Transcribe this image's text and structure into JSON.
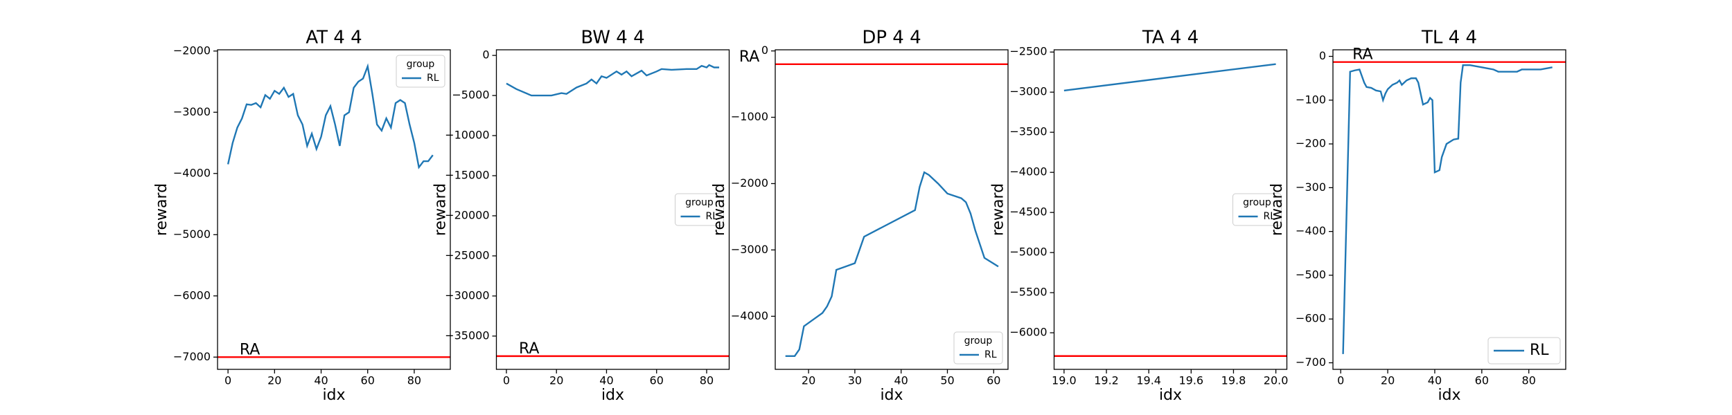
{
  "chart_data": [
    {
      "type": "line",
      "title": "AT 4 4",
      "x_label": "idx",
      "y_label": "reward",
      "x": [
        0,
        2,
        4,
        6,
        8,
        10,
        12,
        14,
        16,
        18,
        20,
        22,
        24,
        26,
        28,
        30,
        32,
        34,
        36,
        38,
        40,
        42,
        44,
        46,
        48,
        50,
        52,
        54,
        56,
        58,
        60,
        62,
        64,
        66,
        68,
        70,
        72,
        74,
        76,
        78,
        80,
        82,
        84,
        86,
        88
      ],
      "series": [
        {
          "name": "RL",
          "color": "#1f77b4",
          "values": [
            -3850,
            -3500,
            -3250,
            -3100,
            -2870,
            -2880,
            -2850,
            -2920,
            -2720,
            -2780,
            -2650,
            -2700,
            -2600,
            -2750,
            -2700,
            -3050,
            -3200,
            -3550,
            -3350,
            -3600,
            -3400,
            -3050,
            -2900,
            -3200,
            -3550,
            -3050,
            -3000,
            -2600,
            -2500,
            -2450,
            -2250,
            -2700,
            -3200,
            -3300,
            -3100,
            -3250,
            -2850,
            -2800,
            -2850,
            -3200,
            -3500,
            -3900,
            -3800,
            -3800,
            -3700
          ]
        }
      ],
      "reference_line": {
        "label": "RA",
        "value": -7000,
        "color": "#ff0000",
        "label_x": 5
      },
      "xlim": [
        -4.5,
        95.5
      ],
      "xticks": [
        0,
        20,
        40,
        60,
        80
      ],
      "ylim": [
        -7200,
        -1980
      ],
      "yticks": [
        {
          "value": -7000,
          "label": "−7000"
        },
        {
          "value": -6000,
          "label": "−6000"
        },
        {
          "value": -5000,
          "label": "−5000"
        },
        {
          "value": -4000,
          "label": "−4000"
        },
        {
          "value": -3000,
          "label": "−3000"
        },
        {
          "value": -2000,
          "label": "−2000"
        }
      ],
      "legend_title": "group",
      "legend": "upper right"
    },
    {
      "type": "line",
      "title": "BW 4 4",
      "x_label": "idx",
      "y_label": "reward",
      "x": [
        0,
        4,
        10,
        18,
        22,
        24,
        28,
        32,
        34,
        36,
        38,
        40,
        44,
        46,
        48,
        50,
        54,
        56,
        60,
        62,
        66,
        72,
        76,
        78,
        80,
        81,
        83,
        85
      ],
      "series": [
        {
          "name": "RL",
          "color": "#1f77b4",
          "values": [
            -3500,
            -4200,
            -5000,
            -5000,
            -4700,
            -4800,
            -4000,
            -3500,
            -3000,
            -3500,
            -2600,
            -2800,
            -2000,
            -2400,
            -2000,
            -2600,
            -1900,
            -2500,
            -2000,
            -1700,
            -1800,
            -1700,
            -1700,
            -1300,
            -1500,
            -1200,
            -1500,
            -1500
          ]
        }
      ],
      "reference_line": {
        "label": "RA",
        "value": -37500,
        "color": "#ff0000",
        "label_x": 5
      },
      "xlim": [
        -4,
        89
      ],
      "xticks": [
        0,
        20,
        40,
        60,
        80
      ],
      "ylim": [
        -39150,
        700
      ],
      "yticks": [
        {
          "value": -35000,
          "label": "−35000"
        },
        {
          "value": -30000,
          "label": "−30000"
        },
        {
          "value": -25000,
          "label": "−25000"
        },
        {
          "value": -20000,
          "label": "−20000"
        },
        {
          "value": -15000,
          "label": "−15000"
        },
        {
          "value": -10000,
          "label": "−10000"
        },
        {
          "value": -5000,
          "label": "−5000"
        },
        0
      ],
      "legend_title": "group",
      "legend": "center right"
    },
    {
      "type": "line",
      "title": "DP 4 4",
      "x_label": "idx",
      "y_label": "reward",
      "x": [
        15,
        17,
        18,
        19,
        21,
        23,
        24,
        25,
        26,
        28,
        30,
        32,
        43,
        44,
        45,
        46,
        48,
        50,
        53,
        54,
        55,
        56,
        58,
        61
      ],
      "series": [
        {
          "name": "RL",
          "color": "#1f77b4",
          "values": [
            -4600,
            -4600,
            -4500,
            -4150,
            -4050,
            -3950,
            -3850,
            -3700,
            -3300,
            -3250,
            -3200,
            -2800,
            -2400,
            -2050,
            -1830,
            -1870,
            -2000,
            -2150,
            -2220,
            -2280,
            -2450,
            -2700,
            -3120,
            -3250
          ]
        }
      ],
      "reference_line": {
        "label": "RA",
        "value": -200,
        "color": "#ff0000",
        "label_x": 5
      },
      "xlim": [
        12.8,
        63.1
      ],
      "xticks": [
        20,
        30,
        40,
        50,
        60
      ],
      "ylim": [
        -4800,
        17
      ],
      "yticks": [
        {
          "value": -4000,
          "label": "−4000"
        },
        {
          "value": -3000,
          "label": "−3000"
        },
        {
          "value": -2000,
          "label": "−2000"
        },
        {
          "value": -1000,
          "label": "−1000"
        },
        0
      ],
      "legend_title": "group",
      "legend": "lower right"
    },
    {
      "type": "line",
      "title": "TA 4 4",
      "x_label": "idx",
      "y_label": "reward",
      "x": [
        19,
        20
      ],
      "series": [
        {
          "name": "RL",
          "color": "#1f77b4",
          "values": [
            -2980,
            -2650
          ]
        }
      ],
      "reference_line": {
        "value": -6290,
        "color": "#ff0000"
      },
      "xlim": [
        18.953,
        20.052
      ],
      "xticks": [
        {
          "value": 19,
          "label": "19.0"
        },
        19.2,
        19.4,
        19.6,
        19.8,
        {
          "value": 20,
          "label": "20.0"
        }
      ],
      "ylim": [
        -6456,
        -2472
      ],
      "yticks": [
        {
          "value": -6000,
          "label": "−6000"
        },
        {
          "value": -5500,
          "label": "−5500"
        },
        {
          "value": -5000,
          "label": "−5000"
        },
        {
          "value": -4500,
          "label": "−4500"
        },
        {
          "value": -4000,
          "label": "−4000"
        },
        {
          "value": -3500,
          "label": "−3500"
        },
        {
          "value": -3000,
          "label": "−3000"
        },
        {
          "value": -2500,
          "label": "−2500"
        }
      ],
      "legend_title": "group",
      "legend": "center right"
    },
    {
      "type": "line",
      "title": "TL 4 4",
      "x_label": "idx",
      "y_label": "reward",
      "x": [
        1,
        4,
        6,
        8,
        9,
        10,
        11,
        13,
        15,
        17,
        18,
        19,
        20,
        22,
        24,
        25,
        26,
        28,
        30,
        32,
        33,
        35,
        37,
        38,
        39,
        40,
        42,
        43,
        45,
        48,
        50,
        51,
        52,
        55,
        60,
        65,
        67,
        75,
        77,
        85,
        90
      ],
      "series": [
        {
          "name": "RL",
          "color": "#1f77b4",
          "values": [
            -680,
            -35,
            -32,
            -30,
            -45,
            -60,
            -70,
            -72,
            -78,
            -80,
            -100,
            -85,
            -75,
            -65,
            -60,
            -55,
            -65,
            -55,
            -50,
            -50,
            -60,
            -110,
            -105,
            -95,
            -100,
            -265,
            -260,
            -230,
            -200,
            -190,
            -188,
            -60,
            -20,
            -20,
            -25,
            -30,
            -35,
            -35,
            -30,
            -30,
            -25
          ]
        }
      ],
      "reference_line": {
        "label": "RA",
        "value": -13,
        "color": "#ff0000",
        "label_x": 5
      },
      "xlim": [
        -3.3,
        95.7
      ],
      "xticks": [
        0,
        20,
        40,
        60,
        80
      ],
      "ylim": [
        -715,
        15
      ],
      "yticks": [
        {
          "value": -700,
          "label": "−700"
        },
        {
          "value": -600,
          "label": "−600"
        },
        {
          "value": -500,
          "label": "−500"
        },
        {
          "value": -400,
          "label": "−400"
        },
        {
          "value": -300,
          "label": "−300"
        },
        {
          "value": -200,
          "label": "−200"
        },
        {
          "value": -100,
          "label": "−100"
        },
        0
      ],
      "legend": "lower right"
    }
  ]
}
